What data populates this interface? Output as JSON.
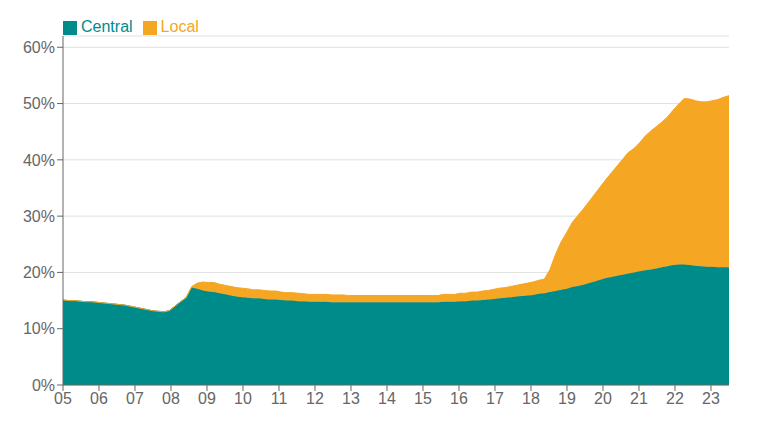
{
  "chart_data": {
    "type": "area",
    "stacked": true,
    "grid": true,
    "legend": "upper left",
    "x": [
      2005,
      2005.1555,
      2005.3109,
      2005.4664,
      2005.6218,
      2005.7773,
      2005.9328,
      2006.0882,
      2006.2437,
      2006.3992,
      2006.5546,
      2006.7101,
      2006.8655,
      2007.021,
      2007.1765,
      2007.3319,
      2007.4874,
      2007.6429,
      2007.7983,
      2007.9538,
      2008.1092,
      2008.2647,
      2008.4202,
      2008.5756,
      2008.7311,
      2008.8866,
      2009.042,
      2009.1975,
      2009.3529,
      2009.5084,
      2009.6639,
      2009.8193,
      2009.9748,
      2010.1303,
      2010.2857,
      2010.4412,
      2010.5966,
      2010.7521,
      2010.9076,
      2011.063,
      2011.2185,
      2011.3739,
      2011.5294,
      2011.6849,
      2011.8403,
      2011.9958,
      2012.1513,
      2012.3067,
      2012.4622,
      2012.6176,
      2012.7731,
      2012.9286,
      2013.084,
      2013.2395,
      2013.395,
      2013.5504,
      2013.7059,
      2013.8613,
      2014.0168,
      2014.1723,
      2014.3277,
      2014.4832,
      2014.6387,
      2014.7941,
      2014.9496,
      2015.105,
      2015.2605,
      2015.416,
      2015.5714,
      2015.7269,
      2015.8824,
      2016.0378,
      2016.1933,
      2016.3487,
      2016.5042,
      2016.6597,
      2016.8151,
      2016.9706,
      2017.1261,
      2017.2815,
      2017.437,
      2017.5924,
      2017.7479,
      2017.9034,
      2018.0588,
      2018.2143,
      2018.3697,
      2018.5252,
      2018.6807,
      2018.8361,
      2018.9916,
      2019.1471,
      2019.3025,
      2019.458,
      2019.6134,
      2019.7689,
      2019.9244,
      2020.0798,
      2020.2353,
      2020.3908,
      2020.5462,
      2020.7017,
      2020.8571,
      2021.0126,
      2021.1681,
      2021.3235,
      2021.479,
      2021.6345,
      2021.7899,
      2021.9454,
      2022.1008,
      2022.2563,
      2022.4118,
      2022.5672,
      2022.7227,
      2022.8782,
      2023.0336,
      2023.1891,
      2023.3445,
      2023.5
    ],
    "xlim": [
      2005,
      2023.5
    ],
    "xticks": [
      {
        "value": 2005,
        "label": "05"
      },
      {
        "value": 2006,
        "label": "06"
      },
      {
        "value": 2007,
        "label": "07"
      },
      {
        "value": 2008,
        "label": "08"
      },
      {
        "value": 2009,
        "label": "09"
      },
      {
        "value": 2010,
        "label": "10"
      },
      {
        "value": 2011,
        "label": "11"
      },
      {
        "value": 2012,
        "label": "12"
      },
      {
        "value": 2013,
        "label": "13"
      },
      {
        "value": 2014,
        "label": "14"
      },
      {
        "value": 2015,
        "label": "15"
      },
      {
        "value": 2016,
        "label": "16"
      },
      {
        "value": 2017,
        "label": "17"
      },
      {
        "value": 2018,
        "label": "18"
      },
      {
        "value": 2019,
        "label": "19"
      },
      {
        "value": 2020,
        "label": "20"
      },
      {
        "value": 2021,
        "label": "21"
      },
      {
        "value": 2022,
        "label": "22"
      },
      {
        "value": 2023,
        "label": "23"
      }
    ],
    "ylim": [
      0,
      0.62
    ],
    "yticks": [
      {
        "value": 0.0,
        "label": "0%"
      },
      {
        "value": 0.1,
        "label": "10%"
      },
      {
        "value": 0.2,
        "label": "20%"
      },
      {
        "value": 0.3,
        "label": "30%"
      },
      {
        "value": 0.4,
        "label": "40%"
      },
      {
        "value": 0.5,
        "label": "50%"
      },
      {
        "value": 0.6,
        "label": "60%"
      }
    ],
    "series": [
      {
        "name": "Central",
        "color": "#008B8B",
        "values": [
          0.151,
          0.15,
          0.15,
          0.149,
          0.148,
          0.148,
          0.147,
          0.146,
          0.145,
          0.144,
          0.143,
          0.142,
          0.14,
          0.138,
          0.136,
          0.134,
          0.132,
          0.131,
          0.13,
          0.132,
          0.14,
          0.148,
          0.155,
          0.173,
          0.171,
          0.168,
          0.166,
          0.165,
          0.163,
          0.161,
          0.159,
          0.157,
          0.156,
          0.155,
          0.154,
          0.154,
          0.153,
          0.152,
          0.152,
          0.151,
          0.15,
          0.15,
          0.149,
          0.149,
          0.148,
          0.148,
          0.148,
          0.148,
          0.147,
          0.147,
          0.147,
          0.147,
          0.147,
          0.147,
          0.147,
          0.147,
          0.147,
          0.147,
          0.147,
          0.147,
          0.147,
          0.147,
          0.147,
          0.147,
          0.147,
          0.147,
          0.147,
          0.147,
          0.148,
          0.148,
          0.148,
          0.149,
          0.149,
          0.15,
          0.15,
          0.151,
          0.152,
          0.153,
          0.154,
          0.155,
          0.156,
          0.157,
          0.158,
          0.159,
          0.16,
          0.162,
          0.163,
          0.165,
          0.167,
          0.169,
          0.171,
          0.174,
          0.176,
          0.178,
          0.181,
          0.184,
          0.187,
          0.19,
          0.192,
          0.194,
          0.196,
          0.198,
          0.2,
          0.202,
          0.204,
          0.205,
          0.207,
          0.209,
          0.211,
          0.213,
          0.214,
          0.214,
          0.213,
          0.212,
          0.211,
          0.21,
          0.21,
          0.209,
          0.209,
          0.209
        ]
      },
      {
        "name": "Local",
        "color": "#F5A623",
        "values": [
          0.0,
          0.0,
          0.0,
          0.0,
          0.0,
          0.0,
          0.0,
          0.0,
          0.0,
          0.0,
          0.0,
          0.0,
          0.0,
          0.0,
          0.0,
          0.0,
          0.0,
          0.0,
          0.0,
          0.0,
          0.0,
          0.0,
          0.0,
          0.002,
          0.01,
          0.015,
          0.016,
          0.017,
          0.016,
          0.016,
          0.016,
          0.016,
          0.016,
          0.016,
          0.015,
          0.015,
          0.015,
          0.015,
          0.015,
          0.014,
          0.014,
          0.014,
          0.014,
          0.013,
          0.013,
          0.013,
          0.013,
          0.013,
          0.013,
          0.013,
          0.013,
          0.012,
          0.012,
          0.012,
          0.012,
          0.012,
          0.012,
          0.012,
          0.012,
          0.012,
          0.012,
          0.012,
          0.012,
          0.012,
          0.012,
          0.012,
          0.012,
          0.012,
          0.013,
          0.013,
          0.013,
          0.014,
          0.014,
          0.015,
          0.015,
          0.016,
          0.016,
          0.017,
          0.018,
          0.018,
          0.019,
          0.02,
          0.021,
          0.022,
          0.023,
          0.024,
          0.025,
          0.04,
          0.065,
          0.085,
          0.1,
          0.115,
          0.125,
          0.135,
          0.145,
          0.155,
          0.165,
          0.175,
          0.185,
          0.195,
          0.205,
          0.215,
          0.22,
          0.228,
          0.238,
          0.246,
          0.252,
          0.258,
          0.265,
          0.275,
          0.285,
          0.295,
          0.295,
          0.293,
          0.292,
          0.293,
          0.295,
          0.298,
          0.302,
          0.305
        ]
      }
    ]
  }
}
